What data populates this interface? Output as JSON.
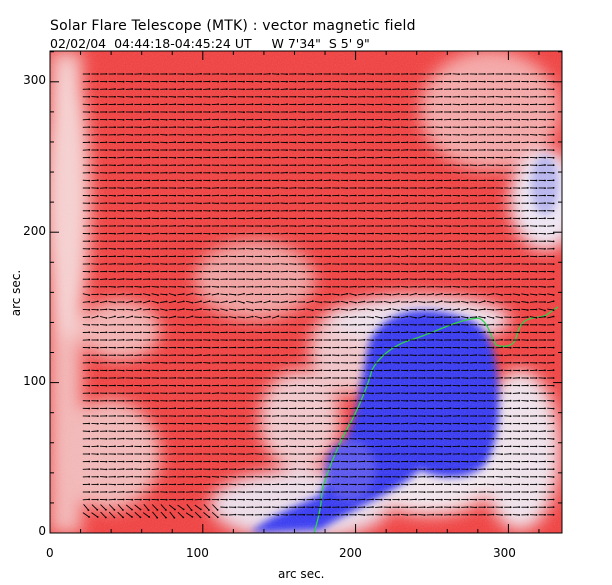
{
  "title": "Solar Flare Telescope (MTK) : vector magnetic field",
  "subtitle": "02/02/04  04:44:18-04:45:24 UT     W 7'34\"  S 5' 9\"",
  "x_axis": {
    "label": "arc sec.",
    "ticks": [
      "0",
      "100",
      "200",
      "300"
    ],
    "range": [
      0,
      335
    ]
  },
  "y_axis": {
    "label": "arc sec.",
    "ticks": [
      "0",
      "100",
      "200",
      "300"
    ],
    "range": [
      0,
      320
    ]
  },
  "colors": {
    "positive_field": "#ef3b3b",
    "weak_field": "#f2e8ee",
    "negative_field": "#3a3cf0",
    "neutral_line": "#2fd34c",
    "vectors": "#000000"
  }
}
